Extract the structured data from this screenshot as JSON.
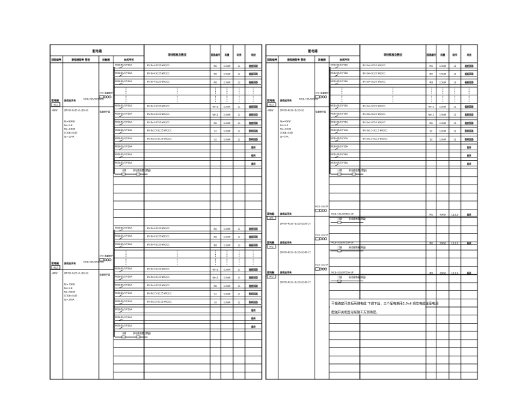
{
  "colors": {
    "line": "#000000",
    "background": "#ffffff"
  },
  "header": {
    "group_title": "配电箱",
    "col_circuit_no": "回路编号",
    "col_breaker": "断路器型号 整定",
    "col_contactor": "接触器",
    "col_outgoing": "出线开关",
    "col_cable": "导线规格及敷设",
    "col_no": "回路编号",
    "col_kw": "容量",
    "col_phase": "相序",
    "col_use": "用途"
  },
  "panels": [
    {
      "name": "配电箱",
      "code": "AL1",
      "suffix": "-ABW",
      "main_label": "进线总开关",
      "main_breaker": "MCB-225/3P/160A",
      "incoming_cable": "ZR-YJV-4x35+1x16-SC",
      "spd": "SPD 浪涌保护",
      "spd_note": "电涌保护器",
      "params": [
        "Pe=80kW",
        "Kx=0.8",
        "Pjs=64kW",
        "COSΦ=0.85",
        "Ijs=114A"
      ]
    },
    {
      "name": "配电箱",
      "code": "AL2",
      "suffix": "-ABW",
      "main_label": "进线总开关",
      "main_breaker": "MCB-225/3P/125A",
      "incoming_cable": "ZR-YJV-4x25+1x16-SC",
      "spd": "SPD 浪涌保护",
      "spd_note": "电涌保护器",
      "params": [
        "Pe=70kW",
        "Kx=0.8",
        "Pjs=56kW",
        "COSΦ=0.85",
        "Ijs=100A"
      ]
    },
    {
      "name": "配电箱",
      "code": "AL3",
      "suffix": "-ABW",
      "main_label": "进线总开关",
      "main_breaker": "MCB-125/3P/80A",
      "incoming_cable": "ZR-YJV-4x16+1x10-SC",
      "spd": "SPD 浪涌保护",
      "spd_note": "电涌保护器",
      "params": [
        "Pe=40kW",
        "Kx=0.8",
        "Pjs=32kW",
        "COSΦ=0.85",
        "Ijs=57A"
      ]
    }
  ],
  "circuits": [
    {
      "breaker": "MCB-63/1P/16A",
      "cable": "BV-3x4-SC20 WC/CC",
      "no": "W1",
      "kw": "1.5kW",
      "phase": "L1",
      "use": "插座回路"
    },
    {
      "breaker": "MCB-63/1P/16A",
      "cable": "BV-3x4-SC20 WC/CC",
      "no": "W2",
      "kw": "1.5kW",
      "phase": "L2",
      "use": "插座回路"
    },
    {
      "breaker": "MCB-63/1P/16A",
      "cable": "BV-3x4-SC20 WC/CC",
      "no": "W3",
      "kw": "1.5kW",
      "phase": "L3",
      "use": "插座回路"
    },
    {
      "dots": true
    },
    {
      "dots": true
    },
    {
      "breaker": "MCB-63/1P/16A",
      "cable": "BV-3x4-SC20 WC/CC",
      "no": "Wn-2",
      "kw": "1.5kW",
      "phase": "L1",
      "use": "插座回路"
    },
    {
      "breaker": "MCB-63/1P/16A",
      "cable": "BV-3x4-SC20 WC/CC",
      "no": "Wn-1",
      "kw": "1.5kW",
      "phase": "L2",
      "use": "插座回路"
    },
    {
      "breaker": "MCB-63/1P/16A",
      "cable": "BV-3x4-SC20 WC/CC",
      "no": "Wn",
      "kw": "1.5kW",
      "phase": "L3",
      "use": "插座回路"
    },
    {
      "breaker": "MCB-63/1P/10A",
      "cable": "BV-3x2.5-SC15 WC/CC",
      "no": "S1",
      "kw": "1.0kW",
      "phase": "L1",
      "use": "照明回路"
    },
    {
      "breaker": "MCB-63/1P/10A",
      "cable": "BV-3x2.5-SC15 WC/CC",
      "no": "S2",
      "kw": "1.0kW",
      "phase": "L2",
      "use": "照明回路"
    },
    {
      "breaker": "MCB-63/1P/16A",
      "cable": "",
      "no": "",
      "kw": "",
      "phase": "",
      "use": "备用"
    },
    {
      "breaker": "MCB-63/1P/16A",
      "cable": "",
      "no": "",
      "kw": "",
      "phase": "",
      "use": "备用"
    },
    {
      "breaker": "MCB-63/1P/16A",
      "cable": "",
      "no": "",
      "kw": "",
      "phase": "",
      "use": "备用"
    },
    {
      "meter": true,
      "meter_label": "计量",
      "meter_note": "多功能电表 (预留)"
    }
  ],
  "feeders": [
    {
      "label": "配电箱",
      "code": "AT1",
      "name": "进线总开关",
      "switch": "MCB-100/3P",
      "breaker": "MCB-125/3P/63A-3P",
      "cable": "ZR-YJV-4x16+1x10-SC50-CT",
      "meter_label": "计量",
      "meter_note": "多功能电表(预留)",
      "no": "W1",
      "kw": "40kW",
      "phase": "L1,2,3",
      "use": "备用"
    },
    {
      "label": "配电箱",
      "code": "AT2",
      "name": "进线总开关",
      "switch": "MCB-100/3P",
      "breaker": "MCB-100/3P/50A-3P",
      "cable": "ZR-YJV-4x10+1x10-SC40-CT",
      "meter_label": "计量",
      "meter_note": "多功能电表(预留)",
      "no": "W2",
      "kw": "30kW",
      "phase": "L1,2,3",
      "use": "备用"
    },
    {
      "label": "配电箱",
      "code": "AT3",
      "name": "进线总开关",
      "switch": "MCB-100/3P",
      "breaker": "MCB-100/3P/50A-3P",
      "cable": "ZR-YJV-4x10+1x10-SC40-CT",
      "meter_label": "计量",
      "meter_note": "多功能电表(预留)",
      "no": "W3",
      "kw": "30kW",
      "phase": "L1,2,3",
      "use": "备用"
    }
  ],
  "note": {
    "line1": "不能确定开关柜两侧电缆 下进下出，三个配电箱用1.0x6 铜芯电缆连接电源",
    "line2": "配送开关柜型号按施工方案确定。"
  }
}
